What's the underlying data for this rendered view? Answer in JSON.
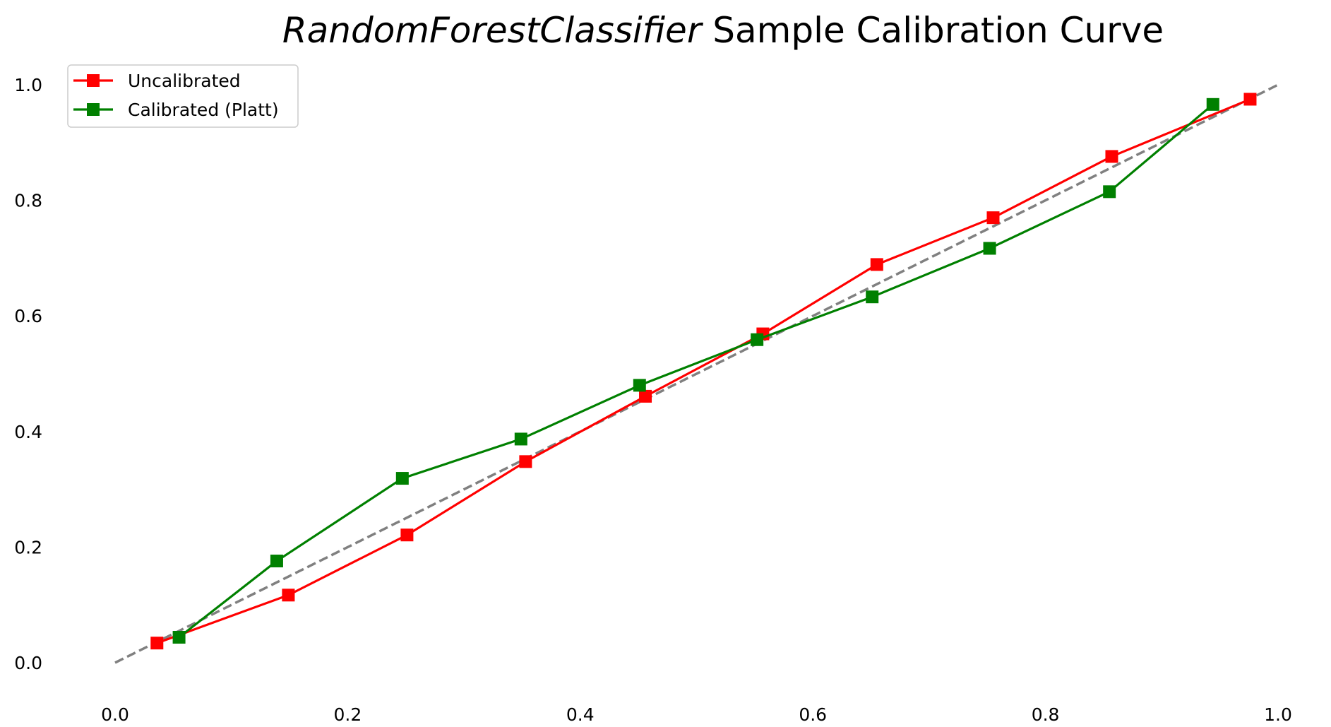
{
  "chart_data": {
    "type": "line",
    "title": {
      "italic_part": "RandomForestClassifier",
      "rest": " Sample Calibration Curve"
    },
    "xlabel": "",
    "ylabel": "",
    "xlim": [
      0.0,
      1.0
    ],
    "ylim": [
      0.0,
      1.0
    ],
    "x_ticks": [
      "0.0",
      "0.2",
      "0.4",
      "0.6",
      "0.8",
      "1.0"
    ],
    "y_ticks": [
      "0.0",
      "0.2",
      "0.4",
      "0.6",
      "0.8",
      "1.0"
    ],
    "grid": false,
    "legend_position": "top-left",
    "reference_line": {
      "style": "dashed",
      "color": "#808080",
      "points": [
        [
          0.0,
          0.0
        ],
        [
          1.0,
          1.0
        ]
      ]
    },
    "series": [
      {
        "name": "Uncalibrated",
        "color": "#ff0000",
        "marker": "square",
        "x": [
          0.036,
          0.149,
          0.251,
          0.353,
          0.456,
          0.557,
          0.655,
          0.755,
          0.857,
          0.976
        ],
        "y": [
          0.034,
          0.117,
          0.221,
          0.348,
          0.461,
          0.569,
          0.689,
          0.77,
          0.876,
          0.975
        ]
      },
      {
        "name": "Calibrated (Platt)",
        "color": "#008000",
        "marker": "square",
        "x": [
          0.055,
          0.139,
          0.247,
          0.349,
          0.451,
          0.552,
          0.651,
          0.752,
          0.855,
          0.944
        ],
        "y": [
          0.044,
          0.176,
          0.319,
          0.387,
          0.48,
          0.559,
          0.633,
          0.717,
          0.815,
          0.966
        ]
      }
    ]
  }
}
